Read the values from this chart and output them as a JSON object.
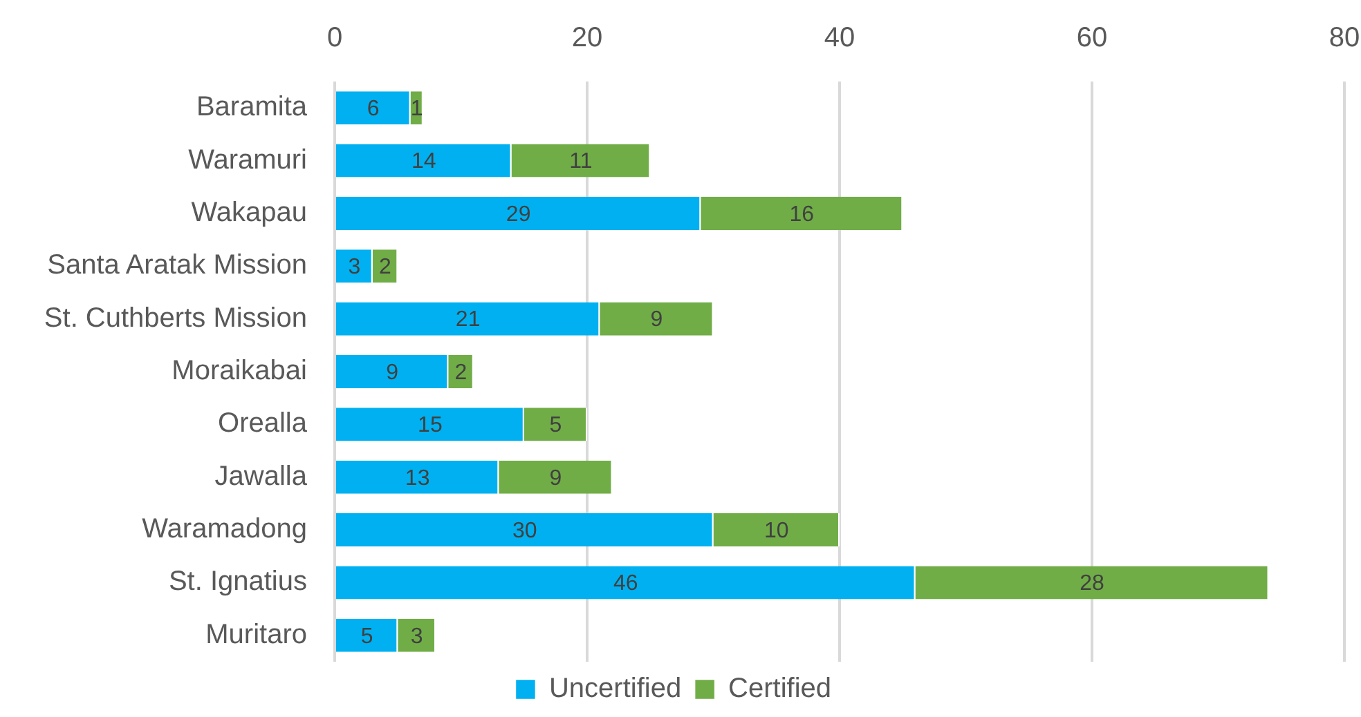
{
  "chart_data": {
    "type": "bar",
    "orientation": "horizontal",
    "stacked": true,
    "categories": [
      "Baramita",
      "Waramuri",
      "Wakapau",
      "Santa Aratak Mission",
      "St. Cuthberts Mission",
      "Moraikabai",
      "Orealla",
      "Jawalla",
      "Waramadong",
      "St. Ignatius",
      "Muritaro"
    ],
    "series": [
      {
        "name": "Uncertified",
        "color": "#00b0f0",
        "values": [
          6,
          14,
          29,
          3,
          21,
          9,
          15,
          13,
          30,
          46,
          5
        ]
      },
      {
        "name": "Certified",
        "color": "#70ad47",
        "values": [
          1,
          11,
          16,
          2,
          9,
          2,
          5,
          9,
          10,
          28,
          3
        ]
      }
    ],
    "xlim": [
      0,
      80
    ],
    "xticks": [
      0,
      20,
      40,
      60,
      80
    ],
    "grid": "x",
    "legend": "bottom",
    "data_labels": true
  }
}
